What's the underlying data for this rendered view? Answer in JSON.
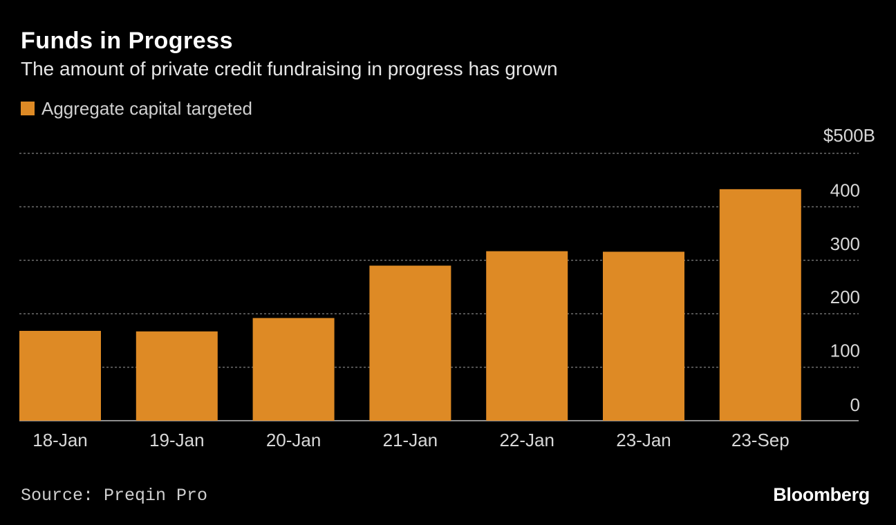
{
  "title": "Funds in Progress",
  "subtitle": "The amount of private credit fundraising in progress has grown",
  "legend": {
    "label": "Aggregate capital targeted"
  },
  "source": "Source: Preqin Pro",
  "brand": "Bloomberg",
  "colors": {
    "background": "#000000",
    "bar": "#de8a25",
    "grid": "#6e6e6e",
    "axis_text": "#d8d8d8"
  },
  "chart_data": {
    "type": "bar",
    "categories": [
      "18-Jan",
      "19-Jan",
      "20-Jan",
      "21-Jan",
      "22-Jan",
      "23-Jan",
      "23-Sep"
    ],
    "series": [
      {
        "name": "Aggregate capital targeted",
        "values": [
          168,
          167,
          192,
          290,
          317,
          316,
          433
        ]
      }
    ],
    "xlabel": "",
    "ylabel": "",
    "ylim": [
      0,
      500
    ],
    "yticks": [
      0,
      100,
      200,
      300,
      400,
      500
    ],
    "ytick_labels": [
      "0",
      "100",
      "200",
      "300",
      "400",
      "$500B"
    ],
    "y_axis_side": "right",
    "grid": true
  }
}
